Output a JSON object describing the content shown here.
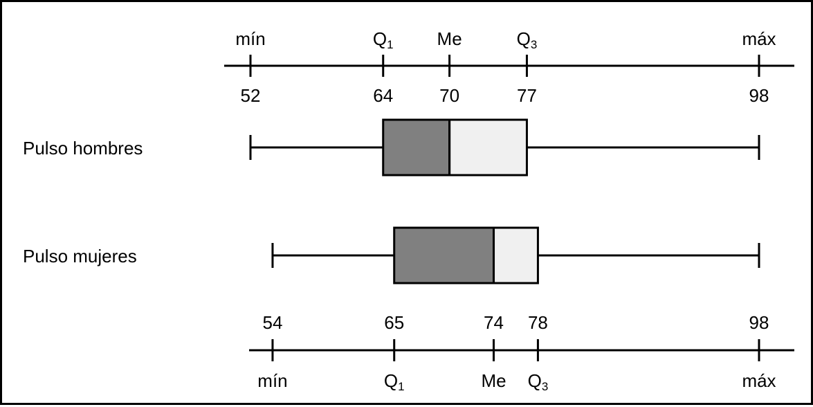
{
  "chart_data": {
    "type": "boxplot",
    "colors": {
      "lower_box": "#808080",
      "upper_box": "#f0f0f0",
      "stroke": "#000000"
    },
    "series": [
      {
        "name": "Pulso hombres",
        "min": 52,
        "q1": 64,
        "median": 70,
        "q3": 77,
        "max": 98,
        "tick_labels": [
          "52",
          "64",
          "70",
          "77",
          "98"
        ]
      },
      {
        "name": "Pulso mujeres",
        "min": 54,
        "q1": 65,
        "median": 74,
        "q3": 78,
        "max": 98,
        "tick_labels": [
          "54",
          "65",
          "74",
          "78",
          "98"
        ]
      }
    ],
    "stat_labels": {
      "min": "mín",
      "q1_main": "Q",
      "q1_sub": "1",
      "median": "Me",
      "q3_main": "Q",
      "q3_sub": "3",
      "max": "máx"
    }
  }
}
